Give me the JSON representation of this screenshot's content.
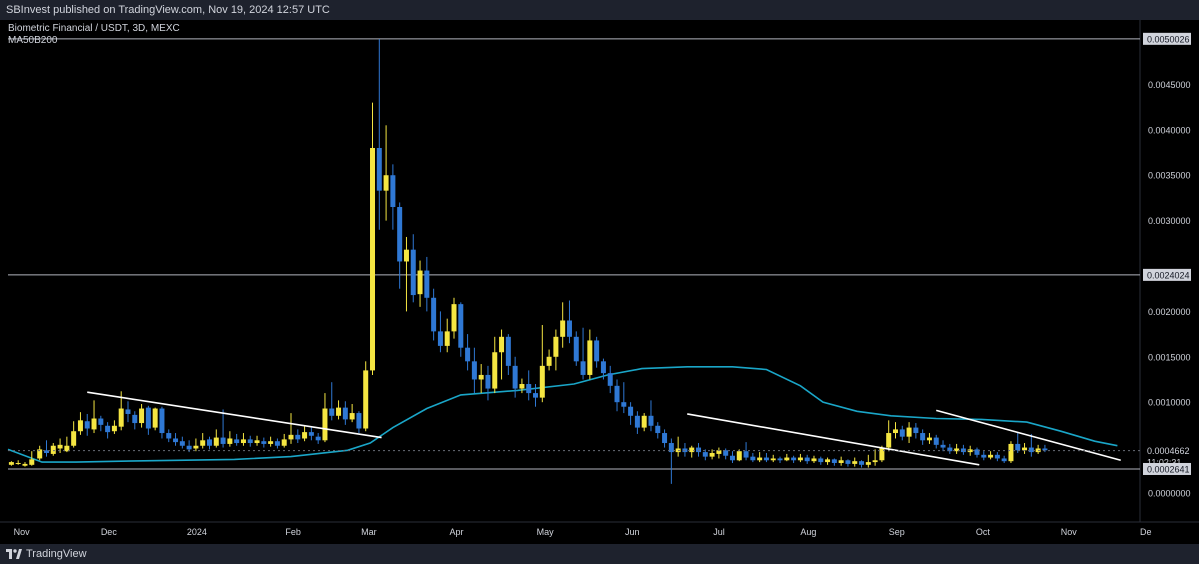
{
  "header": {
    "published_text": "SBInvest published on TradingView.com, Nov 19, 2024 12:57 UTC"
  },
  "legend": {
    "symbol_line": "Biometric Financial / USDT, 3D, MEXC",
    "indicator_line": "MA50B200"
  },
  "footer": {
    "brand": "TradingView"
  },
  "colors": {
    "up": "#f5e642",
    "down": "#2f78d4",
    "ma": "#1aa6c8",
    "trend": "#ffffff",
    "hline": "#b2b5be",
    "axis_text": "#d1d4dc"
  },
  "chart_data": {
    "type": "candlestick",
    "title": "Biometric Financial / USDT, 3D, MEXC",
    "ylim": [
      -0.00032,
      0.00521
    ],
    "y_ticks": [
      "0.0045000",
      "0.0040000",
      "0.0035000",
      "0.0030000",
      "0.0020000",
      "0.0015000",
      "0.0010000",
      "0.0000000"
    ],
    "x_ticks": [
      "Nov",
      "Dec",
      "2024",
      "Feb",
      "Mar",
      "Apr",
      "May",
      "Jun",
      "Jul",
      "Aug",
      "Sep",
      "Oct",
      "Nov",
      "De"
    ],
    "price_labels": [
      {
        "value": 0.0050026,
        "label": "0.0050026"
      },
      {
        "value": 0.0024024,
        "label": "0.0024024"
      },
      {
        "value": 0.0002641,
        "label": "0.0002641"
      }
    ],
    "last_price": {
      "value": 0.0004662,
      "label": "0.0004662",
      "countdown": "11:02:31"
    },
    "series": [
      {
        "name": "MA50B200",
        "x": [
          0,
          0.03,
          0.06,
          0.1,
          0.15,
          0.2,
          0.25,
          0.3,
          0.32,
          0.34,
          0.37,
          0.4,
          0.45,
          0.5,
          0.53,
          0.56,
          0.6,
          0.64,
          0.67,
          0.7,
          0.72,
          0.75,
          0.78,
          0.82,
          0.86,
          0.9,
          0.93,
          0.96,
          0.98
        ],
        "values": [
          0.00048,
          0.00034,
          0.00034,
          0.00035,
          0.00036,
          0.00037,
          0.0004,
          0.00047,
          0.00055,
          0.00072,
          0.00093,
          0.00108,
          0.00113,
          0.0012,
          0.0013,
          0.00137,
          0.00139,
          0.00139,
          0.00136,
          0.00118,
          0.001,
          0.0009,
          0.00085,
          0.00082,
          0.00081,
          0.00078,
          0.00068,
          0.00057,
          0.00052
        ]
      }
    ],
    "trendlines": [
      {
        "from": [
          0.07,
          0.00111
        ],
        "to": [
          0.33,
          0.00061
        ]
      },
      {
        "from": [
          0.6,
          0.00087
        ],
        "to": [
          0.858,
          0.00031
        ]
      },
      {
        "from": [
          0.82,
          0.00091
        ],
        "to": [
          0.983,
          0.00036
        ]
      }
    ],
    "candles": [
      [
        0.003,
        0.00031,
        0.00034,
        0.00035,
        0.0003
      ],
      [
        0.009,
        0.00032,
        0.00033,
        0.00036,
        0.00031
      ],
      [
        0.015,
        0.0003,
        0.00032,
        0.00034,
        0.00029
      ],
      [
        0.021,
        0.00031,
        0.00037,
        0.00046,
        0.0003
      ],
      [
        0.028,
        0.00038,
        0.00048,
        0.00052,
        0.00036
      ],
      [
        0.034,
        0.00047,
        0.00044,
        0.00058,
        0.0004
      ],
      [
        0.04,
        0.00043,
        0.00052,
        0.00055,
        0.00041
      ],
      [
        0.046,
        0.00049,
        0.00053,
        0.0006,
        0.00044
      ],
      [
        0.052,
        0.00046,
        0.00052,
        0.00062,
        0.00045
      ],
      [
        0.058,
        0.00052,
        0.00068,
        0.00079,
        0.0005
      ],
      [
        0.064,
        0.00068,
        0.0008,
        0.00089,
        0.00064
      ],
      [
        0.07,
        0.00079,
        0.00071,
        0.00087,
        0.00063
      ],
      [
        0.076,
        0.0007,
        0.00082,
        0.00102,
        0.00066
      ],
      [
        0.082,
        0.00082,
        0.00075,
        0.00085,
        0.00068
      ],
      [
        0.088,
        0.00074,
        0.00067,
        0.00078,
        0.0006
      ],
      [
        0.094,
        0.00068,
        0.00074,
        0.0008,
        0.00065
      ],
      [
        0.1,
        0.00073,
        0.00093,
        0.00112,
        0.00069
      ],
      [
        0.106,
        0.00092,
        0.00087,
        0.00101,
        0.00078
      ],
      [
        0.112,
        0.00086,
        0.00077,
        0.0009,
        0.0007
      ],
      [
        0.118,
        0.00077,
        0.00093,
        0.00098,
        0.00072
      ],
      [
        0.124,
        0.00094,
        0.00071,
        0.00096,
        0.00064
      ],
      [
        0.13,
        0.00072,
        0.00093,
        0.00094,
        0.00069
      ],
      [
        0.136,
        0.00093,
        0.00066,
        0.00095,
        0.0006
      ],
      [
        0.142,
        0.00066,
        0.0006,
        0.0007,
        0.00056
      ],
      [
        0.148,
        0.0006,
        0.00056,
        0.00066,
        0.00052
      ],
      [
        0.154,
        0.00057,
        0.00052,
        0.00062,
        0.00049
      ],
      [
        0.16,
        0.00052,
        0.00048,
        0.00058,
        0.00045
      ],
      [
        0.166,
        0.00049,
        0.00052,
        0.0006,
        0.00046
      ],
      [
        0.172,
        0.00052,
        0.00058,
        0.00066,
        0.00049
      ],
      [
        0.178,
        0.00059,
        0.00052,
        0.00062,
        0.00048
      ],
      [
        0.184,
        0.00052,
        0.00061,
        0.0007,
        0.0005
      ],
      [
        0.19,
        0.00061,
        0.00054,
        0.00092,
        0.0005
      ],
      [
        0.196,
        0.00054,
        0.0006,
        0.00068,
        0.00051
      ],
      [
        0.202,
        0.00059,
        0.00055,
        0.00065,
        0.00052
      ],
      [
        0.208,
        0.00055,
        0.00059,
        0.00066,
        0.00052
      ],
      [
        0.214,
        0.00059,
        0.00055,
        0.00063,
        0.00051
      ],
      [
        0.22,
        0.00055,
        0.00058,
        0.00063,
        0.00052
      ],
      [
        0.226,
        0.00057,
        0.00054,
        0.00061,
        0.0005
      ],
      [
        0.232,
        0.00054,
        0.00057,
        0.00062,
        0.00051
      ],
      [
        0.238,
        0.00057,
        0.00052,
        0.0006,
        0.00049
      ],
      [
        0.244,
        0.00052,
        0.00059,
        0.00065,
        0.0005
      ],
      [
        0.25,
        0.00059,
        0.00064,
        0.00088,
        0.00054
      ],
      [
        0.256,
        0.00064,
        0.00059,
        0.0007,
        0.00055
      ],
      [
        0.262,
        0.0006,
        0.00067,
        0.00074,
        0.00057
      ],
      [
        0.268,
        0.00067,
        0.00063,
        0.00072,
        0.00058
      ],
      [
        0.274,
        0.00062,
        0.00058,
        0.00066,
        0.00054
      ],
      [
        0.28,
        0.00058,
        0.00093,
        0.0011,
        0.00056
      ],
      [
        0.286,
        0.00093,
        0.00085,
        0.00122,
        0.0008
      ],
      [
        0.292,
        0.00085,
        0.00094,
        0.00102,
        0.00081
      ],
      [
        0.298,
        0.00094,
        0.00081,
        0.00101,
        0.00075
      ],
      [
        0.304,
        0.00081,
        0.00088,
        0.00098,
        0.00078
      ],
      [
        0.31,
        0.00088,
        0.00071,
        0.0009,
        0.00066
      ],
      [
        0.316,
        0.00071,
        0.00135,
        0.00145,
        0.00068
      ],
      [
        0.322,
        0.00135,
        0.0038,
        0.0043,
        0.0013
      ],
      [
        0.328,
        0.0038,
        0.00333,
        0.005,
        0.0029
      ],
      [
        0.334,
        0.00333,
        0.0035,
        0.00405,
        0.003
      ],
      [
        0.34,
        0.0035,
        0.00315,
        0.00362,
        0.0029
      ],
      [
        0.346,
        0.00315,
        0.00255,
        0.0032,
        0.00225
      ],
      [
        0.352,
        0.00255,
        0.00268,
        0.00282,
        0.002
      ],
      [
        0.358,
        0.00268,
        0.00218,
        0.00285,
        0.0021
      ],
      [
        0.364,
        0.00219,
        0.00245,
        0.00256,
        0.00205
      ],
      [
        0.37,
        0.00245,
        0.00215,
        0.0026,
        0.002
      ],
      [
        0.376,
        0.00215,
        0.00178,
        0.00225,
        0.00168
      ],
      [
        0.382,
        0.00178,
        0.00162,
        0.002,
        0.00155
      ],
      [
        0.388,
        0.00162,
        0.00178,
        0.00192,
        0.00155
      ],
      [
        0.394,
        0.00178,
        0.00208,
        0.00215,
        0.0017
      ],
      [
        0.4,
        0.00208,
        0.0016,
        0.0021,
        0.0015
      ],
      [
        0.406,
        0.0016,
        0.00145,
        0.00175,
        0.00135
      ],
      [
        0.412,
        0.00145,
        0.00125,
        0.0016,
        0.0011
      ],
      [
        0.418,
        0.00125,
        0.0013,
        0.00142,
        0.0011
      ],
      [
        0.424,
        0.0013,
        0.00115,
        0.0014,
        0.00102
      ],
      [
        0.43,
        0.00115,
        0.00155,
        0.00172,
        0.0011
      ],
      [
        0.436,
        0.00155,
        0.00172,
        0.0018,
        0.00125
      ],
      [
        0.442,
        0.00172,
        0.0014,
        0.00175,
        0.0013
      ],
      [
        0.448,
        0.0014,
        0.00115,
        0.0015,
        0.00105
      ],
      [
        0.454,
        0.00115,
        0.0012,
        0.00126,
        0.0011
      ],
      [
        0.46,
        0.0012,
        0.0011,
        0.00135,
        0.00102
      ],
      [
        0.466,
        0.0011,
        0.00105,
        0.0012,
        0.00095
      ],
      [
        0.472,
        0.00105,
        0.0014,
        0.00185,
        0.001
      ],
      [
        0.478,
        0.0014,
        0.0015,
        0.00158,
        0.00135
      ],
      [
        0.484,
        0.0015,
        0.00172,
        0.0018,
        0.00135
      ],
      [
        0.49,
        0.00172,
        0.0019,
        0.0021,
        0.0016
      ],
      [
        0.496,
        0.0019,
        0.00172,
        0.00212,
        0.00165
      ],
      [
        0.502,
        0.00172,
        0.00145,
        0.00178,
        0.0014
      ],
      [
        0.508,
        0.00145,
        0.0013,
        0.00182,
        0.00125
      ],
      [
        0.514,
        0.0013,
        0.00168,
        0.0018,
        0.00125
      ],
      [
        0.52,
        0.00168,
        0.00145,
        0.00172,
        0.00138
      ],
      [
        0.526,
        0.00145,
        0.00132,
        0.00148,
        0.00125
      ],
      [
        0.532,
        0.00132,
        0.00118,
        0.0014,
        0.0011
      ],
      [
        0.538,
        0.00118,
        0.001,
        0.00125,
        0.0009
      ],
      [
        0.544,
        0.001,
        0.00095,
        0.00122,
        0.00088
      ],
      [
        0.55,
        0.00095,
        0.00085,
        0.001,
        0.00075
      ],
      [
        0.556,
        0.00085,
        0.00072,
        0.0009,
        0.00065
      ],
      [
        0.562,
        0.00072,
        0.00085,
        0.00088,
        0.00068
      ],
      [
        0.568,
        0.00085,
        0.00074,
        0.00102,
        0.00068
      ],
      [
        0.574,
        0.00074,
        0.00066,
        0.00078,
        0.0006
      ],
      [
        0.58,
        0.00066,
        0.00055,
        0.0007,
        0.0005
      ],
      [
        0.586,
        0.00055,
        0.00045,
        0.0006,
        0.0001
      ],
      [
        0.592,
        0.00045,
        0.00049,
        0.00062,
        0.0004
      ],
      [
        0.598,
        0.00049,
        0.00045,
        0.00055,
        0.0004
      ],
      [
        0.604,
        0.00045,
        0.0005,
        0.00052,
        0.00039
      ],
      [
        0.61,
        0.0005,
        0.00045,
        0.00055,
        0.0004
      ],
      [
        0.616,
        0.00045,
        0.0004,
        0.00048,
        0.00036
      ],
      [
        0.622,
        0.0004,
        0.00044,
        0.00048,
        0.00037
      ],
      [
        0.628,
        0.00043,
        0.00047,
        0.0005,
        0.00038
      ],
      [
        0.634,
        0.00047,
        0.00041,
        0.00049,
        0.00037
      ],
      [
        0.64,
        0.00041,
        0.00036,
        0.00046,
        0.00033
      ],
      [
        0.646,
        0.00036,
        0.00046,
        0.00048,
        0.00035
      ],
      [
        0.652,
        0.00046,
        0.00039,
        0.00056,
        0.00036
      ],
      [
        0.658,
        0.0004,
        0.00036,
        0.00044,
        0.00034
      ],
      [
        0.664,
        0.00036,
        0.00039,
        0.00045,
        0.00034
      ],
      [
        0.67,
        0.00039,
        0.00036,
        0.00044,
        0.00034
      ],
      [
        0.676,
        0.00036,
        0.00038,
        0.00042,
        0.00034
      ],
      [
        0.682,
        0.00038,
        0.00036,
        0.0004,
        0.00033
      ],
      [
        0.688,
        0.00036,
        0.00039,
        0.00043,
        0.00035
      ],
      [
        0.694,
        0.00039,
        0.00036,
        0.00041,
        0.00033
      ],
      [
        0.7,
        0.00036,
        0.00039,
        0.00043,
        0.00034
      ],
      [
        0.706,
        0.00039,
        0.00035,
        0.00042,
        0.00032
      ],
      [
        0.712,
        0.00035,
        0.00038,
        0.00041,
        0.00033
      ],
      [
        0.718,
        0.00038,
        0.00034,
        0.0004,
        0.00031
      ],
      [
        0.724,
        0.00034,
        0.00037,
        0.00039,
        0.00031
      ],
      [
        0.73,
        0.00037,
        0.00033,
        0.00038,
        0.0003
      ],
      [
        0.736,
        0.00033,
        0.00036,
        0.0004,
        0.0003
      ],
      [
        0.742,
        0.00036,
        0.00032,
        0.00037,
        0.00029
      ],
      [
        0.748,
        0.00032,
        0.00035,
        0.00039,
        0.00029
      ],
      [
        0.754,
        0.00035,
        0.00031,
        0.00036,
        0.00028
      ],
      [
        0.76,
        0.00031,
        0.00034,
        0.00042,
        0.00028
      ],
      [
        0.766,
        0.00034,
        0.00036,
        0.00048,
        0.0003
      ],
      [
        0.772,
        0.00036,
        0.0005,
        0.00052,
        0.00034
      ],
      [
        0.778,
        0.0005,
        0.00066,
        0.0008,
        0.00046
      ],
      [
        0.784,
        0.00066,
        0.0007,
        0.00078,
        0.0006
      ],
      [
        0.79,
        0.0007,
        0.00062,
        0.00074,
        0.00058
      ],
      [
        0.796,
        0.00062,
        0.00072,
        0.00078,
        0.00055
      ],
      [
        0.802,
        0.00072,
        0.00066,
        0.00077,
        0.0006
      ],
      [
        0.808,
        0.00066,
        0.00058,
        0.0007,
        0.00053
      ],
      [
        0.814,
        0.00058,
        0.00061,
        0.00066,
        0.00054
      ],
      [
        0.82,
        0.00061,
        0.00053,
        0.00064,
        0.00049
      ],
      [
        0.826,
        0.00053,
        0.0005,
        0.00058,
        0.00046
      ],
      [
        0.832,
        0.0005,
        0.00046,
        0.00054,
        0.00043
      ],
      [
        0.838,
        0.00046,
        0.00049,
        0.00054,
        0.00043
      ],
      [
        0.844,
        0.00049,
        0.00045,
        0.00053,
        0.00042
      ],
      [
        0.85,
        0.00045,
        0.00048,
        0.00052,
        0.00041
      ],
      [
        0.856,
        0.00048,
        0.00042,
        0.0005,
        0.00039
      ],
      [
        0.862,
        0.00042,
        0.00039,
        0.00046,
        0.00036
      ],
      [
        0.868,
        0.00039,
        0.00042,
        0.00046,
        0.00037
      ],
      [
        0.874,
        0.00042,
        0.00038,
        0.00045,
        0.00035
      ],
      [
        0.88,
        0.00038,
        0.00035,
        0.00041,
        0.00033
      ],
      [
        0.886,
        0.00035,
        0.00054,
        0.00057,
        0.00033
      ],
      [
        0.892,
        0.00054,
        0.00047,
        0.00066,
        0.00044
      ],
      [
        0.898,
        0.00047,
        0.0005,
        0.00055,
        0.00043
      ],
      [
        0.904,
        0.0005,
        0.00045,
        0.00065,
        0.0004
      ],
      [
        0.91,
        0.00045,
        0.00049,
        0.00053,
        0.00043
      ],
      [
        0.916,
        0.00049,
        0.00047,
        0.00053,
        0.00045
      ]
    ]
  }
}
